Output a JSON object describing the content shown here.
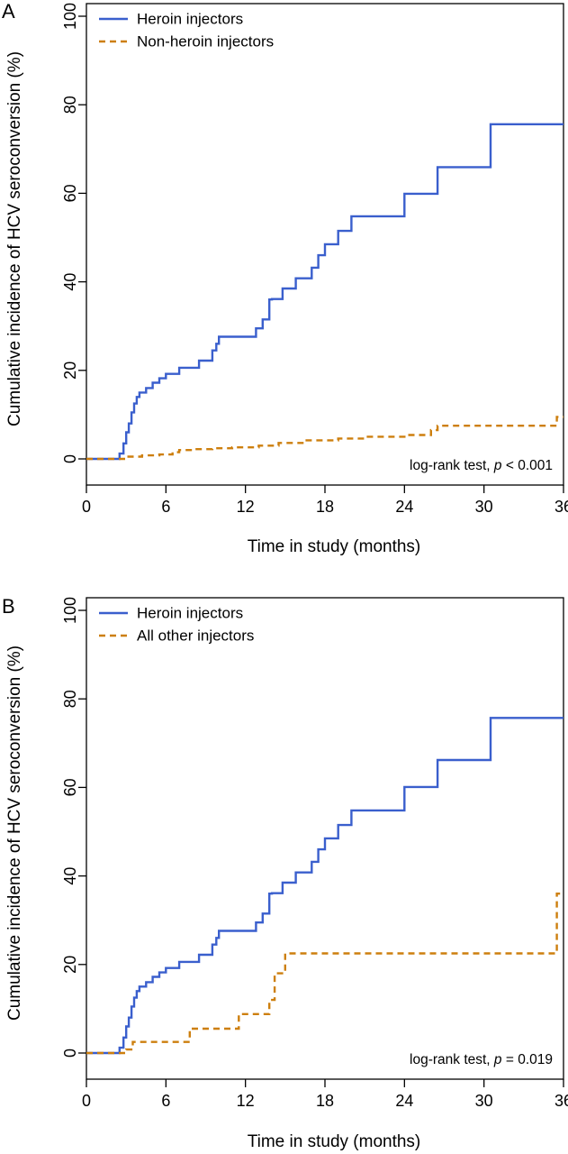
{
  "figure": {
    "colors": {
      "heroin": "#3a5fcd",
      "other": "#cd7f0e",
      "axis": "#000000"
    }
  },
  "chart_data": [
    {
      "panel": "A",
      "type": "line",
      "title": "",
      "xlabel": "Time in study (months)",
      "ylabel": "Cumulative incidence of HCV seroconversion (%)",
      "xlim": [
        0,
        36
      ],
      "ylim": [
        0,
        100
      ],
      "xticks": [
        "0",
        "6",
        "12",
        "18",
        "24",
        "30",
        "36"
      ],
      "yticks": [
        "0",
        "20",
        "40",
        "60",
        "80",
        "100"
      ],
      "legend_position": "top-left",
      "annotation": {
        "prefix": "log-rank test, ",
        "p": "p",
        "suffix": " < 0.001"
      },
      "series": [
        {
          "name": "Heroin injectors",
          "color": "#3a5fcd",
          "dash": "solid",
          "step": true,
          "x": [
            0,
            2.5,
            2.8,
            3.0,
            3.2,
            3.4,
            3.6,
            3.8,
            4.0,
            4.5,
            5.0,
            5.5,
            6.0,
            7.0,
            8.5,
            9.5,
            9.8,
            10.0,
            12.8,
            13.3,
            13.8,
            14.0,
            14.8,
            15.8,
            17.0,
            17.5,
            18.0,
            19.0,
            20.0,
            24.0,
            26.5,
            30.5,
            36.0
          ],
          "y": [
            0,
            1.2,
            3.5,
            6,
            8,
            10.5,
            12.5,
            14,
            15,
            16,
            17.2,
            18.2,
            19.2,
            20.6,
            22.2,
            24.5,
            26,
            27.6,
            29.5,
            31.5,
            36,
            36.1,
            38.5,
            40.8,
            43.2,
            46,
            48.5,
            51.5,
            54.8,
            59.9,
            65.9,
            75.6,
            75.6
          ]
        },
        {
          "name": "Non-heroin injectors",
          "color": "#cd7f0e",
          "dash": "dashed",
          "step": true,
          "x": [
            0,
            3.0,
            4.2,
            5.5,
            6.5,
            7.0,
            8.0,
            9.5,
            11.0,
            13.0,
            14.5,
            16.5,
            19.0,
            21.0,
            24.0,
            26.0,
            26.5,
            35.5,
            36.0
          ],
          "y": [
            0,
            0.5,
            0.8,
            1.0,
            1.5,
            2.0,
            2.2,
            2.4,
            2.6,
            3.0,
            3.6,
            4.2,
            4.6,
            5.0,
            5.4,
            6.5,
            7.5,
            9.5,
            9.5
          ]
        }
      ]
    },
    {
      "panel": "B",
      "type": "line",
      "title": "",
      "xlabel": "Time in study (months)",
      "ylabel": "Cumulative incidence of HCV seroconversion (%)",
      "xlim": [
        0,
        36
      ],
      "ylim": [
        0,
        100
      ],
      "xticks": [
        "0",
        "6",
        "12",
        "18",
        "24",
        "30",
        "36"
      ],
      "yticks": [
        "0",
        "20",
        "40",
        "60",
        "80",
        "100"
      ],
      "legend_position": "top-left",
      "annotation": {
        "prefix": "log-rank test, ",
        "p": "p",
        "suffix": " = 0.019"
      },
      "series": [
        {
          "name": "Heroin injectors",
          "color": "#3a5fcd",
          "dash": "solid",
          "step": true,
          "x": [
            0,
            2.5,
            2.8,
            3.0,
            3.2,
            3.4,
            3.6,
            3.8,
            4.0,
            4.5,
            5.0,
            5.5,
            6.0,
            7.0,
            8.5,
            9.5,
            9.8,
            10.0,
            12.8,
            13.3,
            13.8,
            14.0,
            14.8,
            15.8,
            17.0,
            17.5,
            18.0,
            19.0,
            20.0,
            24.0,
            26.5,
            30.5,
            36.0
          ],
          "y": [
            0,
            1.2,
            3.5,
            6,
            8,
            10.5,
            12.5,
            14,
            15,
            16,
            17.2,
            18.2,
            19.2,
            20.6,
            22.2,
            24.5,
            26,
            27.6,
            29.5,
            31.5,
            36,
            36.1,
            38.5,
            40.8,
            43.2,
            46,
            48.5,
            51.5,
            54.8,
            60.1,
            66.2,
            75.7,
            75.7
          ]
        },
        {
          "name": "All other injectors",
          "color": "#cd7f0e",
          "dash": "dashed",
          "step": true,
          "x": [
            0,
            3.0,
            3.5,
            7.8,
            11.5,
            13.8,
            14.2,
            15.0,
            35.5,
            36.0
          ],
          "y": [
            0,
            0.8,
            2.5,
            5.5,
            8.8,
            12.0,
            18.0,
            22.5,
            36.0,
            36.0
          ]
        }
      ]
    }
  ]
}
